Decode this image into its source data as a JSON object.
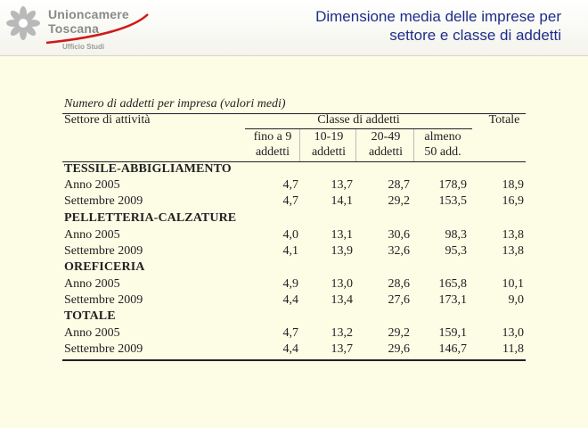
{
  "header": {
    "brand_line1": "Unioncamere",
    "brand_line2": "Toscana",
    "office": "Ufficio Studi",
    "title": "Dimensione media delle imprese per settore e classe di addetti"
  },
  "table": {
    "caption": "Numero di addetti per impresa (valori medi)",
    "col_sector": "Settore di attività",
    "col_group": "Classe di addetti",
    "col_total": "Totale",
    "subcols": [
      {
        "line1": "fino a 9",
        "line2": "addetti"
      },
      {
        "line1": "10-19",
        "line2": "addetti"
      },
      {
        "line1": "20-49",
        "line2": "addetti"
      },
      {
        "line1": "almeno",
        "line2": "50 add."
      }
    ],
    "sections": [
      {
        "name": "TESSILE-ABBIGLIAMENTO",
        "rows": [
          {
            "label": "Anno 2005",
            "values": [
              "4,7",
              "13,7",
              "28,7",
              "178,9",
              "18,9"
            ]
          },
          {
            "label": "Settembre 2009",
            "values": [
              "4,7",
              "14,1",
              "29,2",
              "153,5",
              "16,9"
            ]
          }
        ]
      },
      {
        "name": "PELLETTERIA-CALZATURE",
        "rows": [
          {
            "label": "Anno 2005",
            "values": [
              "4,0",
              "13,1",
              "30,6",
              "98,3",
              "13,8"
            ]
          },
          {
            "label": "Settembre 2009",
            "values": [
              "4,1",
              "13,9",
              "32,6",
              "95,3",
              "13,8"
            ]
          }
        ]
      },
      {
        "name": "OREFICERIA",
        "rows": [
          {
            "label": "Anno 2005",
            "values": [
              "4,9",
              "13,0",
              "28,6",
              "165,8",
              "10,1"
            ]
          },
          {
            "label": "Settembre 2009",
            "values": [
              "4,4",
              "13,4",
              "27,6",
              "173,1",
              "9,0"
            ]
          }
        ]
      },
      {
        "name": "TOTALE",
        "rows": [
          {
            "label": "Anno 2005",
            "values": [
              "4,7",
              "13,2",
              "29,2",
              "159,1",
              "13,0"
            ]
          },
          {
            "label": "Settembre 2009",
            "values": [
              "4,4",
              "13,7",
              "29,6",
              "146,7",
              "11,8"
            ]
          }
        ]
      }
    ]
  }
}
